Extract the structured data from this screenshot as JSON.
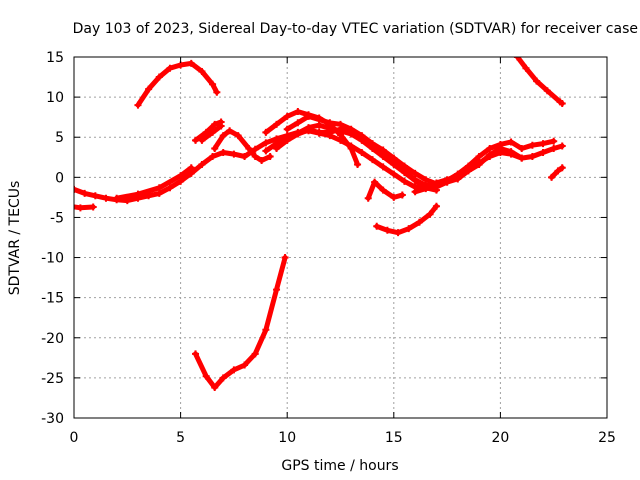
{
  "chart_data": {
    "type": "scatter",
    "title": "Day 103 of 2023, Sidereal Day-to-day VTEC variation (SDTVAR) for receiver case",
    "xlabel": "GPS time / hours",
    "ylabel": "SDTVAR / TECUs",
    "xlim": [
      0,
      25
    ],
    "ylim": [
      -30,
      15
    ],
    "xticks": [
      0,
      5,
      10,
      15,
      20,
      25
    ],
    "yticks": [
      -30,
      -25,
      -20,
      -15,
      -10,
      -5,
      0,
      5,
      10,
      15
    ],
    "grid": true,
    "marker_color": "#ff0000",
    "series": [
      {
        "name": "trace-1",
        "points": [
          [
            0,
            -1.5
          ],
          [
            0.5,
            -2
          ],
          [
            1,
            -2.3
          ],
          [
            1.5,
            -2.6
          ],
          [
            2,
            -2.8
          ],
          [
            2.5,
            -2.9
          ],
          [
            3,
            -2.6
          ],
          [
            3.5,
            -2.3
          ],
          [
            4,
            -2
          ],
          [
            4.5,
            -1.3
          ],
          [
            5,
            -0.5
          ],
          [
            5.5,
            0.5
          ],
          [
            6,
            1.6
          ],
          [
            6.5,
            2.6
          ],
          [
            7,
            3.1
          ],
          [
            7.5,
            2.9
          ],
          [
            8,
            2.6
          ],
          [
            8.5,
            3.5
          ],
          [
            9,
            4.3
          ],
          [
            9.5,
            4.8
          ],
          [
            10,
            5.2
          ],
          [
            10.5,
            5.6
          ],
          [
            11,
            5.8
          ],
          [
            11.5,
            5.5
          ],
          [
            12,
            5.2
          ],
          [
            12.5,
            4.6
          ],
          [
            13,
            3.9
          ],
          [
            13.5,
            3.1
          ],
          [
            14,
            2.2
          ],
          [
            14.5,
            1.3
          ],
          [
            15,
            0.4
          ],
          [
            15.5,
            -0.5
          ],
          [
            16,
            -1.2
          ],
          [
            16.5,
            -1.2
          ],
          [
            17,
            -0.7
          ],
          [
            17.5,
            -0.3
          ],
          [
            18,
            0.2
          ],
          [
            18.5,
            0.9
          ],
          [
            19,
            1.8
          ],
          [
            19.5,
            2.6
          ],
          [
            20,
            3.1
          ],
          [
            20.5,
            2.9
          ],
          [
            21,
            2.4
          ],
          [
            21.5,
            2.6
          ],
          [
            22,
            3.1
          ],
          [
            22.5,
            3.6
          ],
          [
            22.9,
            3.9
          ]
        ]
      },
      {
        "name": "trace-2",
        "points": [
          [
            2,
            -2.6
          ],
          [
            3,
            -2.1
          ],
          [
            4,
            -1.3
          ],
          [
            5,
            0.2
          ],
          [
            5.5,
            1.2
          ]
        ]
      },
      {
        "name": "trace-3",
        "points": [
          [
            -0.2,
            -3.6
          ],
          [
            0.3,
            -3.8
          ],
          [
            0.9,
            -3.7
          ]
        ]
      },
      {
        "name": "trace-4",
        "points": [
          [
            6,
            4.6
          ],
          [
            6.5,
            5.6
          ],
          [
            6.9,
            6.4
          ]
        ]
      },
      {
        "name": "trace-5",
        "points": [
          [
            5.7,
            4.6
          ],
          [
            6.2,
            5.6
          ],
          [
            6.6,
            6.6
          ],
          [
            6.9,
            6.9
          ]
        ]
      },
      {
        "name": "trace-6",
        "points": [
          [
            6.6,
            3.6
          ],
          [
            7,
            5.2
          ],
          [
            7.3,
            5.8
          ],
          [
            7.7,
            5.2
          ],
          [
            8.2,
            3.6
          ],
          [
            8.5,
            2.6
          ],
          [
            8.8,
            2.1
          ],
          [
            9.2,
            2.6
          ]
        ]
      },
      {
        "name": "trace-7",
        "points": [
          [
            9,
            5.6
          ],
          [
            9.5,
            6.6
          ],
          [
            10,
            7.6
          ],
          [
            10.5,
            8.2
          ],
          [
            11,
            7.8
          ],
          [
            11.5,
            7.4
          ],
          [
            12,
            6.6
          ],
          [
            12.5,
            5.3
          ],
          [
            13,
            3.6
          ],
          [
            13.3,
            1.6
          ]
        ]
      },
      {
        "name": "trace-8",
        "points": [
          [
            9,
            3.3
          ],
          [
            9.5,
            4.2
          ],
          [
            10,
            5
          ],
          [
            10.5,
            5.5
          ],
          [
            11,
            6.2
          ],
          [
            11.5,
            6.5
          ],
          [
            12,
            6.1
          ],
          [
            12.5,
            5.8
          ],
          [
            13,
            5.4
          ],
          [
            13.5,
            4.6
          ],
          [
            14,
            3.6
          ],
          [
            14.5,
            2.6
          ],
          [
            15,
            1.6
          ],
          [
            15.5,
            0.6
          ],
          [
            16,
            -0.4
          ],
          [
            16.5,
            -1.3
          ],
          [
            17,
            -1.6
          ]
        ]
      },
      {
        "name": "trace-9",
        "points": [
          [
            9.5,
            3.6
          ],
          [
            10,
            4.6
          ],
          [
            10.5,
            5.4
          ],
          [
            11,
            5.9
          ],
          [
            11.5,
            5.6
          ],
          [
            12,
            5.6
          ],
          [
            12.5,
            6
          ],
          [
            13,
            5.6
          ],
          [
            13.5,
            4.8
          ],
          [
            14,
            3.8
          ],
          [
            14.5,
            2.8
          ],
          [
            15,
            1.8
          ],
          [
            15.5,
            0.8
          ],
          [
            16,
            -0.3
          ],
          [
            16.5,
            -1
          ],
          [
            17,
            -1
          ]
        ]
      },
      {
        "name": "trace-10",
        "points": [
          [
            10,
            6
          ],
          [
            10.5,
            6.8
          ],
          [
            11,
            7.6
          ],
          [
            11.5,
            7.2
          ],
          [
            12,
            6.8
          ],
          [
            12.5,
            6.6
          ],
          [
            13,
            6
          ],
          [
            13.5,
            5.2
          ],
          [
            14,
            4.2
          ],
          [
            14.5,
            3.4
          ],
          [
            15,
            2.4
          ],
          [
            15.5,
            1.4
          ],
          [
            16,
            0.5
          ],
          [
            16.5,
            -0.3
          ],
          [
            17,
            -0.8
          ],
          [
            17.5,
            -0.6
          ]
        ]
      },
      {
        "name": "trace-11",
        "points": [
          [
            13.8,
            -2.6
          ],
          [
            14.1,
            -0.6
          ],
          [
            14.5,
            -1.6
          ],
          [
            15,
            -2.5
          ],
          [
            15.4,
            -2.2
          ]
        ]
      },
      {
        "name": "trace-12",
        "points": [
          [
            14.2,
            -6.1
          ],
          [
            14.7,
            -6.6
          ],
          [
            15.2,
            -6.9
          ],
          [
            15.7,
            -6.4
          ],
          [
            16.2,
            -5.6
          ],
          [
            16.7,
            -4.6
          ],
          [
            17,
            -3.6
          ]
        ]
      },
      {
        "name": "trace-13",
        "points": [
          [
            17.5,
            -0.4
          ],
          [
            18,
            0.4
          ],
          [
            18.5,
            1.4
          ],
          [
            19,
            2.6
          ],
          [
            19.5,
            3.6
          ],
          [
            20,
            4.1
          ],
          [
            20.5,
            4.4
          ],
          [
            21,
            3.6
          ],
          [
            21.5,
            4
          ],
          [
            22,
            4.2
          ],
          [
            22.5,
            4.5
          ]
        ]
      },
      {
        "name": "trace-14",
        "points": [
          [
            16,
            -1.8
          ],
          [
            16.5,
            -1.4
          ],
          [
            17,
            -1.2
          ],
          [
            17.5,
            -0.6
          ],
          [
            18,
            -0.2
          ],
          [
            18.5,
            0.8
          ],
          [
            19,
            1.6
          ],
          [
            19.5,
            2.8
          ],
          [
            20,
            3.6
          ],
          [
            20.5,
            3.2
          ],
          [
            21,
            2.4
          ]
        ]
      },
      {
        "name": "trace-15",
        "points": [
          [
            3,
            9
          ],
          [
            3.5,
            11
          ],
          [
            4,
            12.5
          ],
          [
            4.5,
            13.6
          ],
          [
            5,
            14
          ],
          [
            5.5,
            14.2
          ],
          [
            6,
            13.2
          ],
          [
            6.5,
            11.6
          ],
          [
            6.7,
            10.6
          ]
        ]
      },
      {
        "name": "trace-16",
        "points": [
          [
            20.8,
            15
          ],
          [
            21.2,
            13.6
          ],
          [
            21.7,
            12
          ],
          [
            22.2,
            10.8
          ],
          [
            22.8,
            9.4
          ],
          [
            22.9,
            9.2
          ]
        ]
      },
      {
        "name": "trace-17",
        "points": [
          [
            22.4,
            0
          ],
          [
            22.7,
            0.8
          ],
          [
            22.9,
            1.2
          ]
        ]
      },
      {
        "name": "trace-18",
        "points": [
          [
            5.7,
            -22
          ],
          [
            6.2,
            -24.8
          ],
          [
            6.6,
            -26.2
          ],
          [
            7,
            -25
          ],
          [
            7.5,
            -24
          ],
          [
            8,
            -23.4
          ],
          [
            8.5,
            -22
          ],
          [
            9,
            -19
          ],
          [
            9.5,
            -14
          ],
          [
            9.9,
            -10
          ]
        ]
      }
    ]
  }
}
